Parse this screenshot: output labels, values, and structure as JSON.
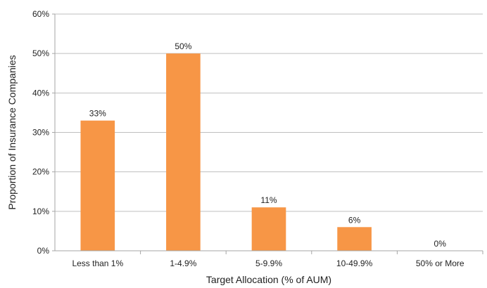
{
  "chart_data": {
    "type": "bar",
    "categories": [
      "Less than 1%",
      "1-4.9%",
      "5-9.9%",
      "10-49.9%",
      "50% or More"
    ],
    "values": [
      33,
      50,
      11,
      6,
      0
    ],
    "data_labels": [
      "33%",
      "50%",
      "11%",
      "6%",
      "0%"
    ],
    "xlabel": "Target Allocation (% of AUM)",
    "ylabel": "Proportion of Insurance Companies",
    "ylim": [
      0,
      60
    ],
    "yticks": [
      0,
      10,
      20,
      30,
      40,
      50,
      60
    ],
    "ytick_labels": [
      "0%",
      "10%",
      "20%",
      "30%",
      "40%",
      "50%",
      "60%"
    ],
    "grid": true,
    "legend": "none",
    "colors": {
      "bar": "#F79646",
      "grid": "#BFBFBF",
      "axis": "#A6A6A6",
      "text": "#222222"
    }
  }
}
